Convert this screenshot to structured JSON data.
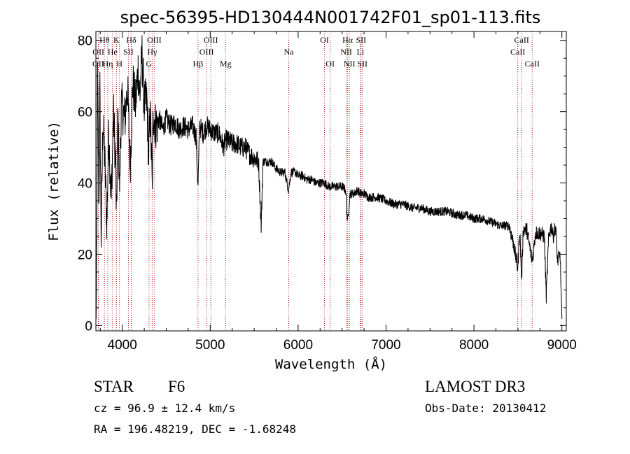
{
  "chart_data": {
    "type": "line",
    "title": "spec-56395-HD130444N001742F01_sp01-113.fits",
    "xlabel": "Wavelength (Å)",
    "ylabel": "Flux (relative)",
    "xlim": [
      3700,
      9050
    ],
    "ylim": [
      -1.5,
      82.5
    ],
    "xticks": [
      4000,
      5000,
      6000,
      7000,
      8000,
      9000
    ],
    "yticks": [
      0,
      20,
      40,
      60,
      80
    ],
    "line_color": "#000000",
    "marker_color": "#b22222",
    "spectral_lines": [
      {
        "label": "OII",
        "wavelength": 3727,
        "row": 2
      },
      {
        "label": "OII",
        "wavelength": 3729,
        "row": 1
      },
      {
        "label": "Hθ",
        "wavelength": 3798,
        "row": 0
      },
      {
        "label": "Hη",
        "wavelength": 3835,
        "row": 2
      },
      {
        "label": "He",
        "wavelength": 3889,
        "row": 1
      },
      {
        "label": "K",
        "wavelength": 3934,
        "row": 0
      },
      {
        "label": "H",
        "wavelength": 3968,
        "row": 2
      },
      {
        "label": "SII",
        "wavelength": 4070,
        "row": 1
      },
      {
        "label": "Hδ",
        "wavelength": 4102,
        "row": 0
      },
      {
        "label": "G",
        "wavelength": 4304,
        "row": 2
      },
      {
        "label": "Hγ",
        "wavelength": 4340,
        "row": 1
      },
      {
        "label": "OIII",
        "wavelength": 4363,
        "row": 0
      },
      {
        "label": "Hβ",
        "wavelength": 4861,
        "row": 2
      },
      {
        "label": "OIII",
        "wavelength": 4959,
        "row": 1
      },
      {
        "label": "OIII",
        "wavelength": 5007,
        "row": 0
      },
      {
        "label": "Mg",
        "wavelength": 5175,
        "row": 2
      },
      {
        "label": "Na",
        "wavelength": 5893,
        "row": 1
      },
      {
        "label": "OI",
        "wavelength": 6300,
        "row": 0
      },
      {
        "label": "OI",
        "wavelength": 6364,
        "row": 2
      },
      {
        "label": "NII",
        "wavelength": 6548,
        "row": 1
      },
      {
        "label": "Hα",
        "wavelength": 6563,
        "row": 0
      },
      {
        "label": "NII",
        "wavelength": 6583,
        "row": 2
      },
      {
        "label": "Li",
        "wavelength": 6708,
        "row": 1
      },
      {
        "label": "SII",
        "wavelength": 6716,
        "row": 0
      },
      {
        "label": "SII",
        "wavelength": 6731,
        "row": 2
      },
      {
        "label": "CaII",
        "wavelength": 8498,
        "row": 1
      },
      {
        "label": "CaII",
        "wavelength": 8542,
        "row": 0
      },
      {
        "label": "CaII",
        "wavelength": 8662,
        "row": 2
      }
    ],
    "spectrum_anchors": [
      [
        3700,
        2
      ],
      [
        3705,
        7
      ],
      [
        3712,
        30
      ],
      [
        3718,
        72
      ],
      [
        3725,
        56
      ],
      [
        3735,
        33
      ],
      [
        3745,
        66
      ],
      [
        3760,
        25
      ],
      [
        3780,
        58
      ],
      [
        3800,
        47
      ],
      [
        3825,
        28
      ],
      [
        3845,
        55
      ],
      [
        3875,
        35
      ],
      [
        3900,
        60
      ],
      [
        3925,
        45
      ],
      [
        3934,
        28
      ],
      [
        3950,
        60
      ],
      [
        3968,
        38
      ],
      [
        3990,
        62
      ],
      [
        4030,
        58
      ],
      [
        4060,
        67
      ],
      [
        4090,
        45
      ],
      [
        4120,
        68
      ],
      [
        4150,
        62
      ],
      [
        4180,
        72
      ],
      [
        4200,
        64
      ],
      [
        4225,
        76
      ],
      [
        4250,
        62
      ],
      [
        4280,
        63
      ],
      [
        4300,
        48
      ],
      [
        4320,
        60
      ],
      [
        4340,
        38
      ],
      [
        4352,
        60
      ],
      [
        4380,
        56
      ],
      [
        4420,
        58
      ],
      [
        4460,
        55
      ],
      [
        4500,
        58
      ],
      [
        4550,
        56
      ],
      [
        4600,
        57
      ],
      [
        4650,
        55
      ],
      [
        4700,
        56
      ],
      [
        4750,
        55
      ],
      [
        4800,
        56
      ],
      [
        4840,
        53
      ],
      [
        4861,
        38
      ],
      [
        4880,
        56
      ],
      [
        4920,
        54
      ],
      [
        4960,
        56
      ],
      [
        5000,
        55
      ],
      [
        5050,
        54
      ],
      [
        5100,
        54
      ],
      [
        5150,
        50
      ],
      [
        5175,
        52
      ],
      [
        5200,
        52
      ],
      [
        5250,
        51
      ],
      [
        5300,
        51
      ],
      [
        5350,
        50
      ],
      [
        5400,
        50
      ],
      [
        5450,
        48
      ],
      [
        5500,
        47
      ],
      [
        5550,
        46
      ],
      [
        5580,
        28
      ],
      [
        5600,
        46
      ],
      [
        5650,
        46
      ],
      [
        5700,
        46
      ],
      [
        5750,
        44
      ],
      [
        5800,
        43
      ],
      [
        5850,
        43
      ],
      [
        5890,
        38
      ],
      [
        5920,
        43
      ],
      [
        5970,
        43
      ],
      [
        6000,
        42
      ],
      [
        6050,
        42
      ],
      [
        6100,
        41
      ],
      [
        6150,
        41
      ],
      [
        6200,
        40
      ],
      [
        6250,
        40
      ],
      [
        6300,
        40
      ],
      [
        6350,
        39
      ],
      [
        6400,
        39
      ],
      [
        6450,
        39
      ],
      [
        6500,
        39
      ],
      [
        6540,
        38
      ],
      [
        6563,
        29
      ],
      [
        6590,
        37
      ],
      [
        6630,
        37
      ],
      [
        6680,
        38
      ],
      [
        6700,
        37
      ],
      [
        6750,
        37
      ],
      [
        6800,
        36
      ],
      [
        6900,
        36
      ],
      [
        7000,
        35
      ],
      [
        7100,
        34
      ],
      [
        7200,
        34
      ],
      [
        7300,
        33
      ],
      [
        7400,
        33
      ],
      [
        7500,
        32
      ],
      [
        7600,
        32
      ],
      [
        7700,
        32
      ],
      [
        7800,
        31
      ],
      [
        7900,
        31
      ],
      [
        8000,
        30
      ],
      [
        8100,
        30
      ],
      [
        8200,
        29
      ],
      [
        8300,
        28
      ],
      [
        8400,
        28
      ],
      [
        8450,
        23
      ],
      [
        8498,
        16
      ],
      [
        8520,
        27
      ],
      [
        8542,
        13
      ],
      [
        8560,
        27
      ],
      [
        8600,
        27
      ],
      [
        8662,
        18
      ],
      [
        8700,
        26
      ],
      [
        8750,
        26
      ],
      [
        8800,
        25
      ],
      [
        8822,
        8
      ],
      [
        8850,
        25
      ],
      [
        8880,
        28
      ],
      [
        8900,
        25
      ],
      [
        8930,
        28
      ],
      [
        8950,
        18
      ],
      [
        8980,
        20
      ],
      [
        9000,
        1
      ]
    ]
  },
  "footer": {
    "object_class": "STAR",
    "subclass": "F6",
    "cz": "cz = 96.9 ± 12.4 km/s",
    "coords": "RA = 196.48219, DEC =  -1.68248",
    "survey": "LAMOST DR3",
    "obs_date": "Obs-Date: 20130412"
  }
}
